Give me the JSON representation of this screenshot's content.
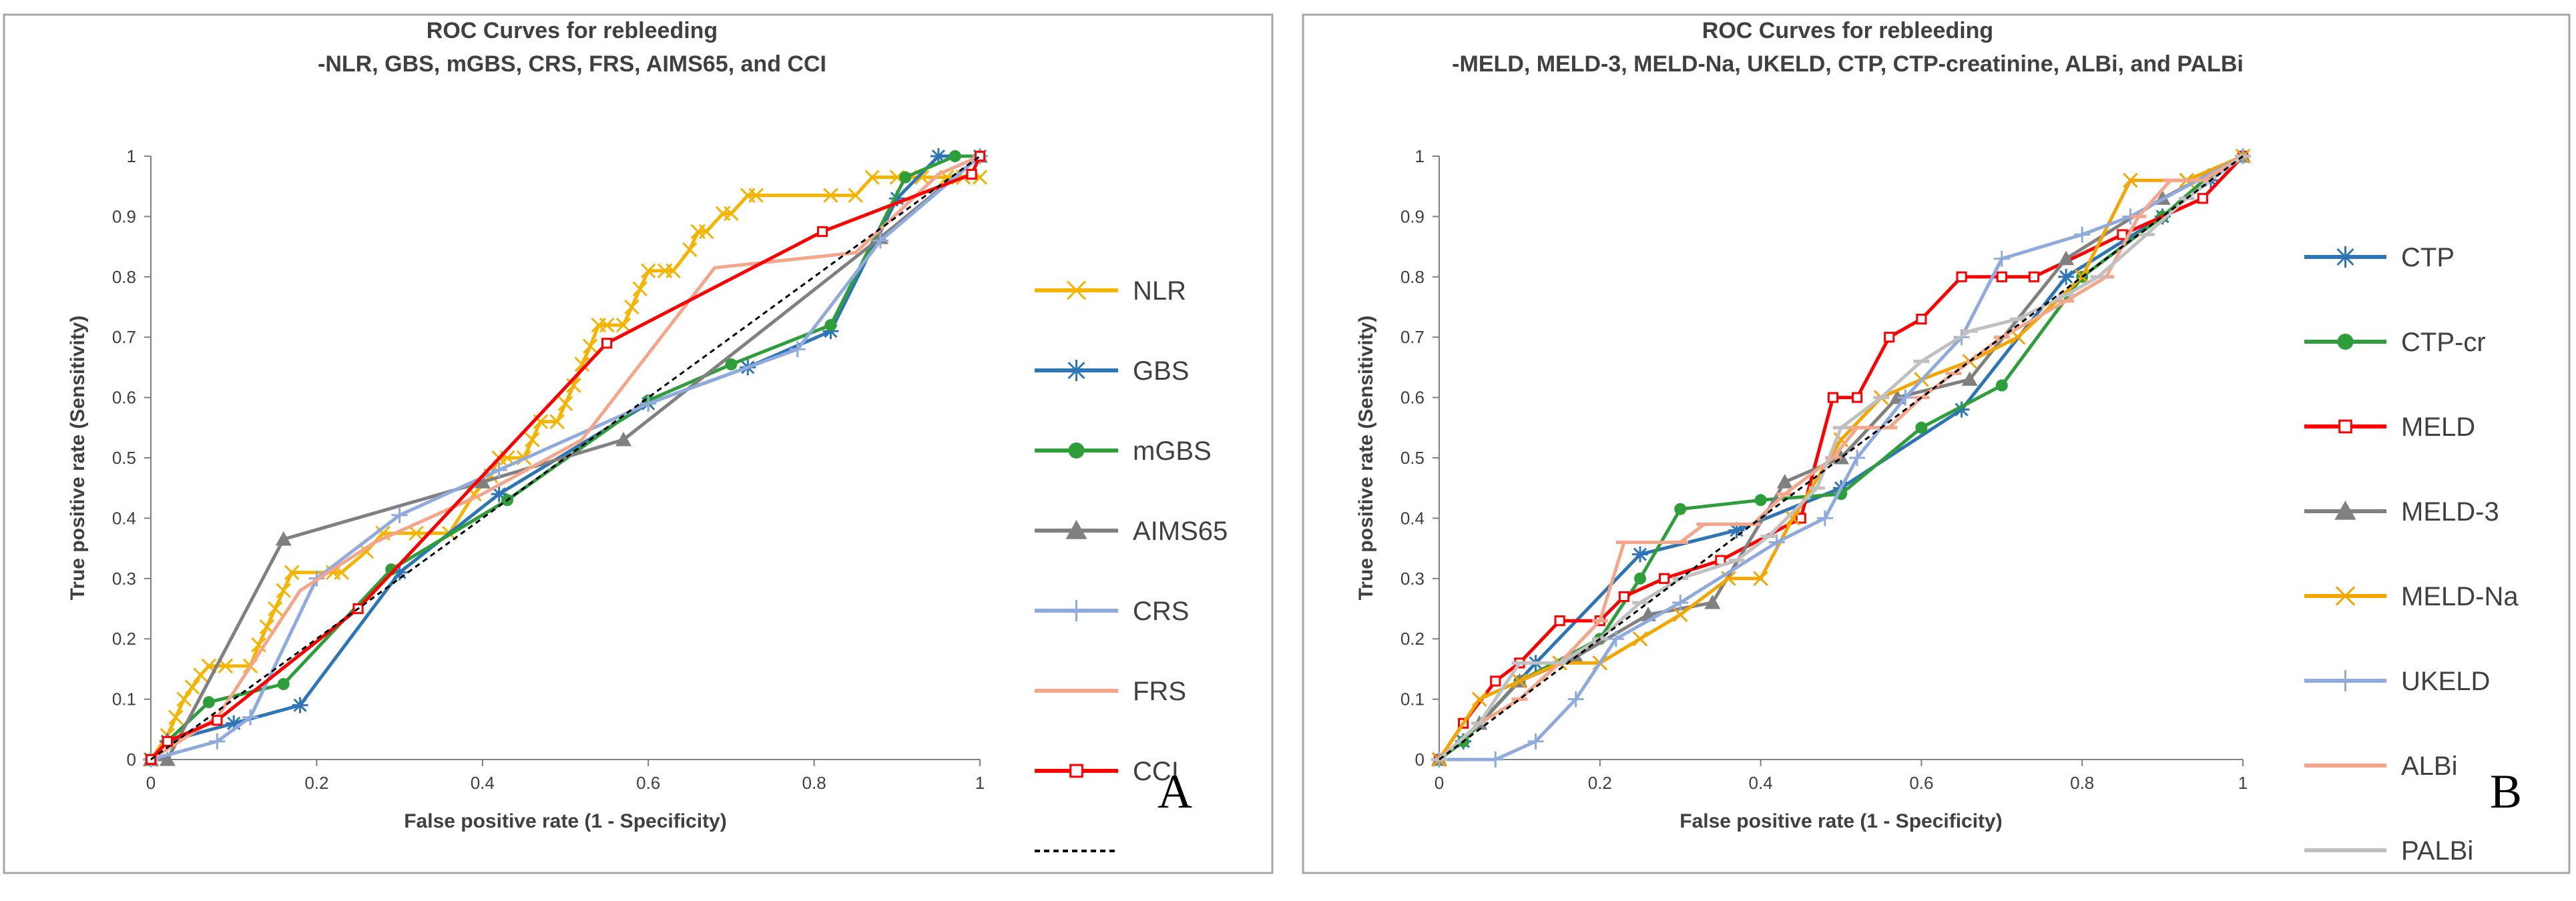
{
  "chart_data": [
    {
      "type": "line",
      "panel_label": "A",
      "title": [
        "ROC Curves for rebleeding",
        "-NLR, GBS, mGBS, CRS, FRS, AIMS65,  and CCI"
      ],
      "xlabel": "False positive rate (1 - Specificity)",
      "ylabel": "True positive rate (Sensitivity)",
      "xlim": [
        0,
        1
      ],
      "ylim": [
        0,
        1
      ],
      "x_ticks": [
        "0",
        "0.2",
        "0.4",
        "0.6",
        "0.8",
        "1"
      ],
      "y_ticks": [
        "0",
        "0.1",
        "0.2",
        "0.3",
        "0.4",
        "0.5",
        "0.6",
        "0.7",
        "0.8",
        "0.9",
        "1"
      ],
      "grid": false,
      "legend_position": "right",
      "series": [
        {
          "name": "NLR",
          "color": "#f4b400",
          "marker": "x",
          "x": [
            0,
            0.02,
            0.03,
            0.04,
            0.05,
            0.06,
            0.07,
            0.09,
            0.12,
            0.13,
            0.14,
            0.15,
            0.16,
            0.17,
            0.22,
            0.23,
            0.26,
            0.28,
            0.32,
            0.36,
            0.39,
            0.41,
            0.42,
            0.43,
            0.45,
            0.46,
            0.47,
            0.49,
            0.5,
            0.51,
            0.52,
            0.53,
            0.54,
            0.55,
            0.57,
            0.58,
            0.59,
            0.6,
            0.62,
            0.63,
            0.65,
            0.66,
            0.67,
            0.69,
            0.7,
            0.72,
            0.73,
            0.82,
            0.85,
            0.87,
            0.9,
            0.93,
            0.96,
            0.98,
            1
          ],
          "y": [
            0,
            0.04,
            0.07,
            0.1,
            0.12,
            0.14,
            0.155,
            0.155,
            0.155,
            0.19,
            0.22,
            0.25,
            0.28,
            0.31,
            0.31,
            0.31,
            0.345,
            0.375,
            0.375,
            0.375,
            0.44,
            0.47,
            0.5,
            0.5,
            0.5,
            0.53,
            0.56,
            0.56,
            0.59,
            0.62,
            0.655,
            0.685,
            0.72,
            0.72,
            0.72,
            0.75,
            0.78,
            0.81,
            0.81,
            0.81,
            0.845,
            0.875,
            0.875,
            0.905,
            0.905,
            0.935,
            0.935,
            0.935,
            0.935,
            0.965,
            0.965,
            0.965,
            0.965,
            0.965,
            0.965
          ]
        },
        {
          "name": "GBS",
          "color": "#2e75b6",
          "marker": "asterisk",
          "x": [
            0,
            0.02,
            0.1,
            0.18,
            0.3,
            0.42,
            0.6,
            0.72,
            0.82,
            0.9,
            0.95,
            1
          ],
          "y": [
            0,
            0.03,
            0.06,
            0.09,
            0.31,
            0.44,
            0.59,
            0.65,
            0.71,
            0.93,
            1,
            1
          ]
        },
        {
          "name": "mGBS",
          "color": "#2e9e3a",
          "marker": "circle",
          "x": [
            0,
            0.02,
            0.07,
            0.16,
            0.29,
            0.43,
            0.6,
            0.7,
            0.82,
            0.91,
            0.97,
            1
          ],
          "y": [
            0,
            0.03,
            0.095,
            0.125,
            0.315,
            0.43,
            0.595,
            0.655,
            0.72,
            0.965,
            1,
            1
          ]
        },
        {
          "name": "AIMS65",
          "color": "#808080",
          "marker": "triangle",
          "x": [
            0,
            0.02,
            0.16,
            0.4,
            0.57,
            0.88,
            1
          ],
          "y": [
            0,
            0,
            0.365,
            0.46,
            0.53,
            0.865,
            1
          ]
        },
        {
          "name": "CRS",
          "color": "#8faadc",
          "marker": "plus",
          "x": [
            0,
            0.08,
            0.12,
            0.2,
            0.3,
            0.42,
            0.6,
            0.78,
            0.88,
            1
          ],
          "y": [
            0,
            0.03,
            0.07,
            0.3,
            0.405,
            0.48,
            0.59,
            0.68,
            0.86,
            1
          ]
        },
        {
          "name": "FRS",
          "color": "#f4a58a",
          "marker": "none",
          "x": [
            0,
            0.08,
            0.18,
            0.27,
            0.4,
            0.52,
            0.68,
            0.85,
            0.95,
            1
          ],
          "y": [
            0,
            0.07,
            0.28,
            0.36,
            0.44,
            0.53,
            0.815,
            0.84,
            0.97,
            1
          ]
        },
        {
          "name": "CCI",
          "color": "#ff0000",
          "marker": "square-open",
          "x": [
            0,
            0.02,
            0.08,
            0.25,
            0.55,
            0.81,
            0.99,
            1
          ],
          "y": [
            0,
            0.03,
            0.065,
            0.25,
            0.69,
            0.875,
            0.97,
            1
          ]
        },
        {
          "name": "",
          "color": "#000000",
          "marker": "none",
          "dashed": true,
          "x": [
            0,
            1
          ],
          "y": [
            0,
            1
          ]
        }
      ]
    },
    {
      "type": "line",
      "panel_label": "B",
      "title": [
        "ROC Curves for rebleeding",
        "-MELD, MELD-3, MELD-Na, UKELD, CTP, CTP-creatinine,  ALBi, and PALBi"
      ],
      "xlabel": "False positive rate (1 - Specificity)",
      "ylabel": "True positive rate (Sensitivity)",
      "xlim": [
        0,
        1
      ],
      "ylim": [
        0,
        1
      ],
      "x_ticks": [
        "0",
        "0.2",
        "0.4",
        "0.6",
        "0.8",
        "1"
      ],
      "y_ticks": [
        "0",
        "0.1",
        "0.2",
        "0.3",
        "0.4",
        "0.5",
        "0.6",
        "0.7",
        "0.8",
        "0.9",
        "1"
      ],
      "grid": false,
      "legend_position": "right",
      "series": [
        {
          "name": "CTP",
          "color": "#2e75b6",
          "marker": "asterisk",
          "x": [
            0,
            0.03,
            0.12,
            0.25,
            0.37,
            0.5,
            0.65,
            0.78,
            0.9,
            0.96,
            1
          ],
          "y": [
            0,
            0.03,
            0.16,
            0.34,
            0.38,
            0.45,
            0.58,
            0.8,
            0.9,
            0.96,
            1
          ]
        },
        {
          "name": "CTP-cr",
          "color": "#2e9e3a",
          "marker": "circle",
          "x": [
            0,
            0.03,
            0.1,
            0.2,
            0.25,
            0.3,
            0.4,
            0.5,
            0.6,
            0.7,
            0.8,
            0.9,
            0.96,
            1
          ],
          "y": [
            0,
            0.03,
            0.13,
            0.2,
            0.3,
            0.415,
            0.43,
            0.44,
            0.55,
            0.62,
            0.8,
            0.9,
            0.97,
            1
          ]
        },
        {
          "name": "MELD",
          "color": "#ff0000",
          "marker": "square-open",
          "x": [
            0,
            0.03,
            0.07,
            0.1,
            0.15,
            0.2,
            0.23,
            0.28,
            0.35,
            0.45,
            0.49,
            0.52,
            0.56,
            0.6,
            0.65,
            0.7,
            0.74,
            0.85,
            0.95,
            1
          ],
          "y": [
            0,
            0.06,
            0.13,
            0.16,
            0.23,
            0.23,
            0.27,
            0.3,
            0.33,
            0.4,
            0.6,
            0.6,
            0.7,
            0.73,
            0.8,
            0.8,
            0.8,
            0.87,
            0.93,
            1
          ]
        },
        {
          "name": "MELD-3",
          "color": "#808080",
          "marker": "triangle",
          "x": [
            0,
            0.05,
            0.1,
            0.17,
            0.26,
            0.34,
            0.43,
            0.5,
            0.57,
            0.66,
            0.78,
            0.9,
            1
          ],
          "y": [
            0,
            0.06,
            0.13,
            0.17,
            0.24,
            0.26,
            0.46,
            0.5,
            0.6,
            0.63,
            0.83,
            0.93,
            1
          ]
        },
        {
          "name": "MELD-Na",
          "color": "#f4a500",
          "marker": "x",
          "x": [
            0,
            0.05,
            0.1,
            0.15,
            0.2,
            0.25,
            0.3,
            0.36,
            0.4,
            0.44,
            0.5,
            0.55,
            0.6,
            0.66,
            0.72,
            0.8,
            0.86,
            0.93,
            1
          ],
          "y": [
            0,
            0.1,
            0.13,
            0.16,
            0.16,
            0.2,
            0.24,
            0.3,
            0.3,
            0.4,
            0.53,
            0.6,
            0.63,
            0.66,
            0.7,
            0.8,
            0.96,
            0.96,
            1
          ]
        },
        {
          "name": "UKELD",
          "color": "#8faadc",
          "marker": "plus",
          "x": [
            0,
            0.07,
            0.12,
            0.17,
            0.22,
            0.3,
            0.42,
            0.48,
            0.52,
            0.58,
            0.65,
            0.7,
            0.8,
            0.86,
            1
          ],
          "y": [
            0,
            0,
            0.03,
            0.1,
            0.2,
            0.26,
            0.36,
            0.4,
            0.5,
            0.6,
            0.7,
            0.83,
            0.87,
            0.9,
            1
          ]
        },
        {
          "name": "ALBi",
          "color": "#f4a58a",
          "marker": "dash",
          "x": [
            0,
            0.05,
            0.1,
            0.15,
            0.2,
            0.23,
            0.3,
            0.33,
            0.39,
            0.43,
            0.49,
            0.52,
            0.56,
            0.6,
            0.64,
            0.7,
            0.78,
            0.83,
            0.87,
            0.91,
            0.95,
            1
          ],
          "y": [
            0,
            0.06,
            0.1,
            0.16,
            0.23,
            0.36,
            0.36,
            0.39,
            0.39,
            0.44,
            0.5,
            0.55,
            0.55,
            0.6,
            0.64,
            0.7,
            0.76,
            0.8,
            0.9,
            0.96,
            0.96,
            1
          ]
        },
        {
          "name": "PALBi",
          "color": "#c0c0c0",
          "marker": "dash",
          "x": [
            0,
            0.05,
            0.1,
            0.15,
            0.2,
            0.25,
            0.3,
            0.37,
            0.41,
            0.47,
            0.5,
            0.55,
            0.6,
            0.66,
            0.72,
            0.78,
            0.82,
            0.88,
            0.93,
            1
          ],
          "y": [
            0,
            0.06,
            0.16,
            0.16,
            0.2,
            0.26,
            0.3,
            0.33,
            0.37,
            0.45,
            0.55,
            0.6,
            0.66,
            0.71,
            0.73,
            0.77,
            0.8,
            0.87,
            0.93,
            1
          ]
        },
        {
          "name": "",
          "color": "#000000",
          "marker": "none",
          "dashed": true,
          "x": [
            0,
            1
          ],
          "y": [
            0,
            1
          ]
        }
      ]
    }
  ]
}
